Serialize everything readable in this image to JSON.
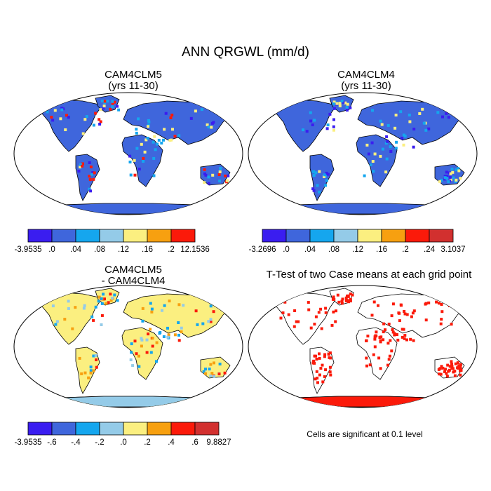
{
  "title": "ANN QRGWL (mm/d)",
  "palette": [
    "#3a1df0",
    "#3f66dc",
    "#15a6ee",
    "#94cbe8",
    "#fbef80",
    "#f7a010",
    "#fb1a0a",
    "#d2302f"
  ],
  "panels": [
    {
      "title_line1": "CAM4CLM5",
      "title_line2": "(yrs 11-30)",
      "ocean_color": "#ffffff",
      "land_color": "#3f66dc",
      "accent_colors": [
        "#3a1df0",
        "#15a6ee",
        "#fbef80",
        "#fb1a0a"
      ],
      "colorbar_labels": [
        "-3.9535",
        ".0",
        ".04",
        ".08",
        ".12",
        ".16",
        ".2",
        "12.1536"
      ]
    },
    {
      "title_line1": "CAM4CLM4",
      "title_line2": "(yrs 11-30)",
      "ocean_color": "#ffffff",
      "land_color": "#3f66dc",
      "accent_colors": [
        "#3a1df0",
        "#15a6ee",
        "#fbef80"
      ],
      "colorbar_labels": [
        "-3.2696",
        ".0",
        ".04",
        ".08",
        ".12",
        ".16",
        ".2",
        ".24",
        "3.1037"
      ]
    },
    {
      "title_line1": "CAM4CLM5",
      "title_line2": "- CAM4CLM4",
      "ocean_color": "#ffffff",
      "land_color": "#fbef80",
      "accent_colors": [
        "#94cbe8",
        "#15a6ee",
        "#fb1a0a",
        "#f7a010"
      ],
      "colorbar_labels": [
        "-3.9535",
        "-.6",
        "-.4",
        "-.2",
        ".0",
        ".2",
        ".4",
        ".6",
        "9.8827"
      ]
    },
    {
      "title_line1": "T-Test of two Case means at each grid point",
      "title_line2": "",
      "ocean_color": "#ffffff",
      "land_color": "#ffffff",
      "accent_colors": [
        "#fb1a0a"
      ],
      "note": "Cells are significant at 0.1 level"
    }
  ]
}
